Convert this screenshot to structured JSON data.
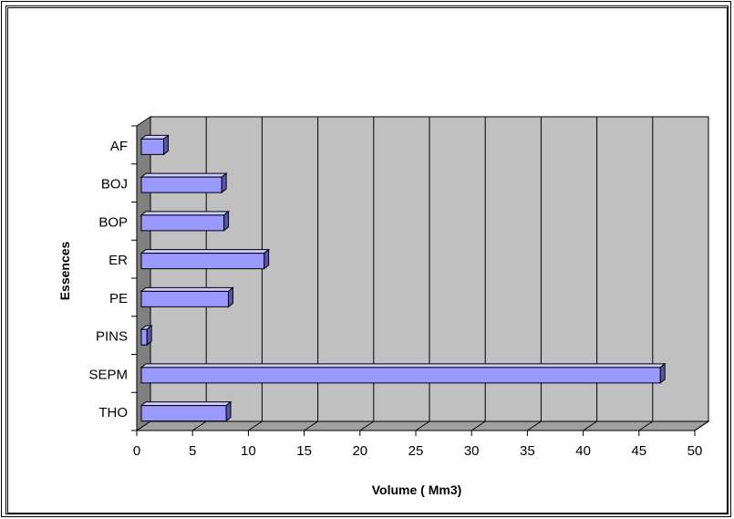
{
  "chart_data": {
    "type": "bar",
    "orientation": "horizontal",
    "title": "",
    "xlabel": "Volume ( Mm3)",
    "ylabel": "Essences",
    "categories": [
      "AF",
      "BOJ",
      "BOP",
      "ER",
      "PE",
      "PINS",
      "SEPM",
      "THO"
    ],
    "values": [
      2.0,
      7.2,
      7.4,
      11.0,
      7.8,
      0.5,
      46.5,
      7.6
    ],
    "xlim": [
      0,
      50
    ],
    "xticks": [
      "0",
      "5",
      "10",
      "15",
      "20",
      "25",
      "30",
      "35",
      "40",
      "45",
      "50"
    ],
    "grid": true,
    "legend": "none",
    "colors": {
      "bar_face": "#9999ff",
      "bar_top": "#ccccff",
      "bar_side": "#5555aa",
      "wall": "#c0c0c0",
      "side_wall": "#808080",
      "floor": "#a0a0a0"
    }
  }
}
